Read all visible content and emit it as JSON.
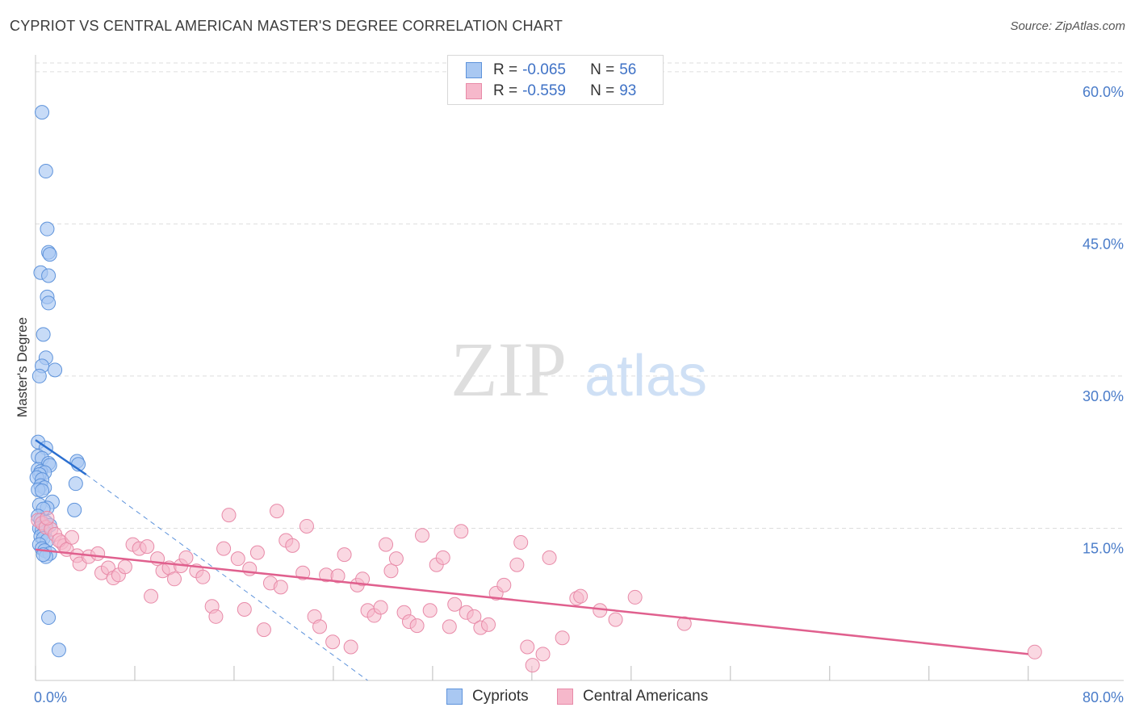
{
  "header": {
    "title": "CYPRIOT VS CENTRAL AMERICAN MASTER'S DEGREE CORRELATION CHART",
    "source": "Source: ZipAtlas.com"
  },
  "watermark": {
    "zip": "ZIP",
    "atlas": "atlas"
  },
  "colors": {
    "cypriots_fill": "#a9c8f2",
    "cypriots_stroke": "#5e93db",
    "cypriots_line": "#2b6fd0",
    "central_fill": "#f6b8cb",
    "central_stroke": "#e88aa8",
    "central_line": "#e0608e",
    "tick_text": "#4a7cc9",
    "grid": "#dddddd"
  },
  "legend": {
    "rows": [
      {
        "r_label": "R =",
        "r_value": "-0.065",
        "n_label": "N =",
        "n_value": "56"
      },
      {
        "r_label": "R =",
        "r_value": "-0.559",
        "n_label": "N =",
        "n_value": "93"
      }
    ]
  },
  "bottom_legend": {
    "items": [
      {
        "label": "Cypriots"
      },
      {
        "label": "Central Americans"
      }
    ]
  },
  "chart_data": {
    "type": "scatter",
    "title": "CYPRIOT VS CENTRAL AMERICAN MASTER'S DEGREE CORRELATION CHART",
    "xlabel": "",
    "ylabel": "Master's Degree",
    "xlim": [
      0,
      80
    ],
    "ylim": [
      0,
      61.5
    ],
    "x_ticks": [
      0,
      7.65,
      15.3,
      22.95,
      30.6,
      38.25,
      45.9,
      53.55,
      61.2,
      68.85,
      76.5
    ],
    "x_tick_labels": [
      {
        "value": 0,
        "label": "0.0%"
      },
      {
        "value": 80,
        "label": "80.0%"
      }
    ],
    "y_tick_labels": [
      {
        "value": 15,
        "label": "15.0%"
      },
      {
        "value": 30,
        "label": "30.0%"
      },
      {
        "value": 45,
        "label": "45.0%"
      },
      {
        "value": 60,
        "label": "60.0%"
      }
    ],
    "grid": true,
    "series": [
      {
        "name": "Cypriots",
        "r": -0.065,
        "n": 56,
        "trend_solid": {
          "x": [
            0,
            3.9
          ],
          "y": [
            23.7,
            20.3
          ]
        },
        "trend_dashed": {
          "x": [
            3.9,
            25.6
          ],
          "y": [
            20.3,
            0
          ]
        },
        "points": [
          [
            0.5,
            56.0
          ],
          [
            0.8,
            50.2
          ],
          [
            0.9,
            44.5
          ],
          [
            1.0,
            42.2
          ],
          [
            1.1,
            42.0
          ],
          [
            0.4,
            40.2
          ],
          [
            1.0,
            39.9
          ],
          [
            0.9,
            37.8
          ],
          [
            1.0,
            37.2
          ],
          [
            0.6,
            34.1
          ],
          [
            0.8,
            31.8
          ],
          [
            0.5,
            31.0
          ],
          [
            1.5,
            30.6
          ],
          [
            0.3,
            30.0
          ],
          [
            0.2,
            23.5
          ],
          [
            0.8,
            22.9
          ],
          [
            0.2,
            22.1
          ],
          [
            0.5,
            21.9
          ],
          [
            1.0,
            21.4
          ],
          [
            1.1,
            21.2
          ],
          [
            3.2,
            21.6
          ],
          [
            3.3,
            21.3
          ],
          [
            0.2,
            20.8
          ],
          [
            0.4,
            20.6
          ],
          [
            0.7,
            20.5
          ],
          [
            0.3,
            20.3
          ],
          [
            0.1,
            20.0
          ],
          [
            0.5,
            19.8
          ],
          [
            3.1,
            19.4
          ],
          [
            0.4,
            19.2
          ],
          [
            0.7,
            19.0
          ],
          [
            0.2,
            18.8
          ],
          [
            0.5,
            18.7
          ],
          [
            1.3,
            17.6
          ],
          [
            0.3,
            17.3
          ],
          [
            0.9,
            17.0
          ],
          [
            0.6,
            16.9
          ],
          [
            3.0,
            16.8
          ],
          [
            0.2,
            16.2
          ],
          [
            0.4,
            15.8
          ],
          [
            0.8,
            15.6
          ],
          [
            1.1,
            15.3
          ],
          [
            0.3,
            15.0
          ],
          [
            0.5,
            14.8
          ],
          [
            0.7,
            14.6
          ],
          [
            0.4,
            14.2
          ],
          [
            0.6,
            14.0
          ],
          [
            0.9,
            13.8
          ],
          [
            0.3,
            13.4
          ],
          [
            0.5,
            13.0
          ],
          [
            0.7,
            12.8
          ],
          [
            1.1,
            12.5
          ],
          [
            0.8,
            12.2
          ],
          [
            0.6,
            12.4
          ],
          [
            1.0,
            6.2
          ],
          [
            1.8,
            3.0
          ]
        ]
      },
      {
        "name": "Central Americans",
        "r": -0.559,
        "n": 93,
        "trend_solid": {
          "x": [
            0,
            76.5
          ],
          "y": [
            12.9,
            2.6
          ]
        },
        "points": [
          [
            0.2,
            15.8
          ],
          [
            0.5,
            15.5
          ],
          [
            0.8,
            15.1
          ],
          [
            1.2,
            14.9
          ],
          [
            1.5,
            14.4
          ],
          [
            2.0,
            13.6
          ],
          [
            2.2,
            13.3
          ],
          [
            0.9,
            16.0
          ],
          [
            1.8,
            13.8
          ],
          [
            2.4,
            12.9
          ],
          [
            2.8,
            14.1
          ],
          [
            3.2,
            12.3
          ],
          [
            3.4,
            11.5
          ],
          [
            4.1,
            12.2
          ],
          [
            4.8,
            12.5
          ],
          [
            5.1,
            10.6
          ],
          [
            5.6,
            11.1
          ],
          [
            6.0,
            10.1
          ],
          [
            6.4,
            10.4
          ],
          [
            6.9,
            11.2
          ],
          [
            7.5,
            13.4
          ],
          [
            8.0,
            13.0
          ],
          [
            8.6,
            13.2
          ],
          [
            8.9,
            8.3
          ],
          [
            9.4,
            12.0
          ],
          [
            9.8,
            10.8
          ],
          [
            10.3,
            11.1
          ],
          [
            10.7,
            10.0
          ],
          [
            11.2,
            11.3
          ],
          [
            11.6,
            12.1
          ],
          [
            12.4,
            10.8
          ],
          [
            12.9,
            10.2
          ],
          [
            13.6,
            7.3
          ],
          [
            13.9,
            6.3
          ],
          [
            14.5,
            13.0
          ],
          [
            14.9,
            16.3
          ],
          [
            15.6,
            12.0
          ],
          [
            16.1,
            7.0
          ],
          [
            16.5,
            11.0
          ],
          [
            17.1,
            12.6
          ],
          [
            17.6,
            5.0
          ],
          [
            18.1,
            9.6
          ],
          [
            18.6,
            16.7
          ],
          [
            18.9,
            9.2
          ],
          [
            19.3,
            13.8
          ],
          [
            19.8,
            13.3
          ],
          [
            20.6,
            10.6
          ],
          [
            20.9,
            15.2
          ],
          [
            21.5,
            6.3
          ],
          [
            21.9,
            5.3
          ],
          [
            22.4,
            10.4
          ],
          [
            22.9,
            3.8
          ],
          [
            23.3,
            10.3
          ],
          [
            23.8,
            12.4
          ],
          [
            24.3,
            3.3
          ],
          [
            24.8,
            9.4
          ],
          [
            25.2,
            10.0
          ],
          [
            25.6,
            6.9
          ],
          [
            26.1,
            6.4
          ],
          [
            26.6,
            7.2
          ],
          [
            27.0,
            13.4
          ],
          [
            27.4,
            10.8
          ],
          [
            27.8,
            12.0
          ],
          [
            28.4,
            6.7
          ],
          [
            28.8,
            5.8
          ],
          [
            29.4,
            5.4
          ],
          [
            29.8,
            14.3
          ],
          [
            30.4,
            6.9
          ],
          [
            30.9,
            11.4
          ],
          [
            31.4,
            12.1
          ],
          [
            31.9,
            5.3
          ],
          [
            32.3,
            7.5
          ],
          [
            32.8,
            14.7
          ],
          [
            33.2,
            6.7
          ],
          [
            33.8,
            6.3
          ],
          [
            34.3,
            5.2
          ],
          [
            34.9,
            5.5
          ],
          [
            35.5,
            8.6
          ],
          [
            36.1,
            9.4
          ],
          [
            37.1,
            11.4
          ],
          [
            37.4,
            13.6
          ],
          [
            37.9,
            3.3
          ],
          [
            38.3,
            1.5
          ],
          [
            39.1,
            2.6
          ],
          [
            39.6,
            12.1
          ],
          [
            40.6,
            4.2
          ],
          [
            41.7,
            8.1
          ],
          [
            42.0,
            8.3
          ],
          [
            43.5,
            6.9
          ],
          [
            44.7,
            6.0
          ],
          [
            46.2,
            8.2
          ],
          [
            50.0,
            5.6
          ],
          [
            77.0,
            2.8
          ]
        ]
      }
    ]
  }
}
